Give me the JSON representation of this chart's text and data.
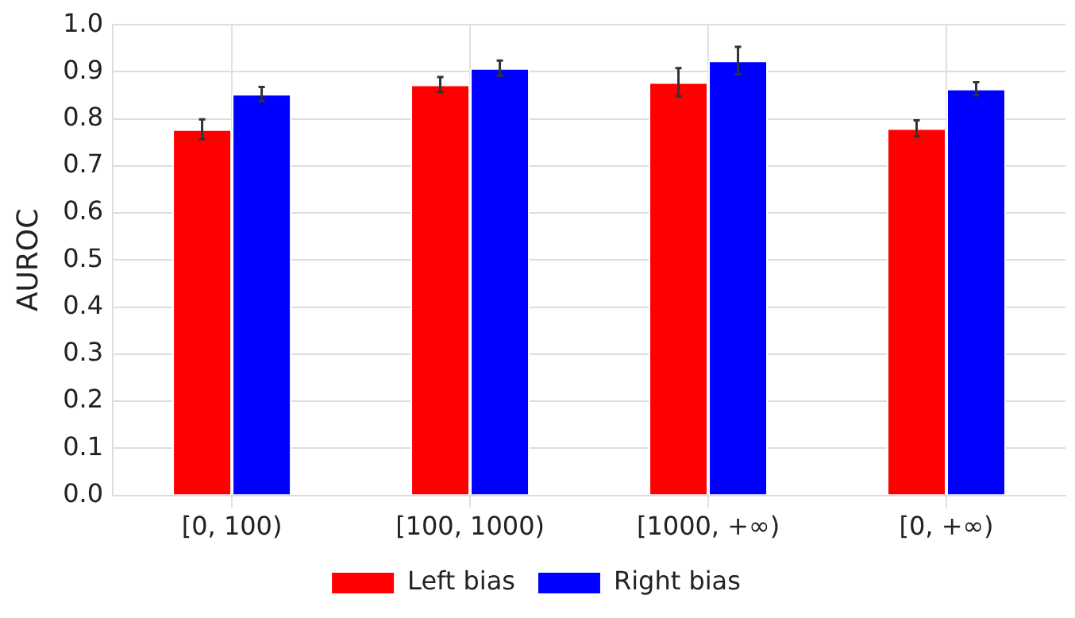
{
  "chart_data": {
    "type": "bar",
    "ylabel": "AUROC",
    "categories": [
      "[0, 100)",
      "[100, 1000)",
      "[1000, +∞)",
      "[0, +∞)"
    ],
    "series": [
      {
        "name": "Left bias",
        "color": "#ff0000",
        "values": [
          0.778,
          0.873,
          0.878,
          0.78
        ],
        "errors": [
          0.021,
          0.016,
          0.03,
          0.017
        ]
      },
      {
        "name": "Right bias",
        "color": "#0000ff",
        "values": [
          0.853,
          0.908,
          0.924,
          0.864
        ],
        "errors": [
          0.015,
          0.016,
          0.029,
          0.014
        ]
      }
    ],
    "ylim": [
      0,
      1
    ],
    "yticks": [
      {
        "value": 0,
        "label": "0.0"
      },
      0.1,
      0.2,
      0.3,
      0.4,
      0.5,
      0.6,
      0.7,
      0.8,
      0.9,
      {
        "value": 1,
        "label": "1.0"
      }
    ],
    "grid": true,
    "legend": "bottom"
  }
}
